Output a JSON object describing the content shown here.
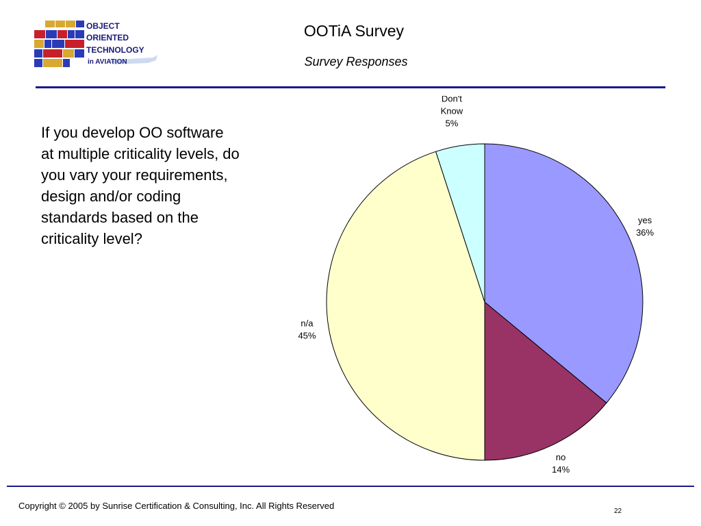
{
  "header": {
    "title": "OOTiA Survey",
    "subtitle": "Survey Responses",
    "logo": {
      "line1": "OBJECT",
      "line2": "ORIENTED",
      "line3": "TECHNOLOGY",
      "line4": "in AVIATION"
    }
  },
  "question": "If you develop OO software at multiple criticality levels, do you vary your requirements, design and/or coding standards based on the criticality level?",
  "footer": {
    "copyright": "Copyright © 2005 by Sunrise Certification & Consulting, Inc.  All Rights Reserved",
    "page_number": "22"
  },
  "colors": {
    "rule": "#1a1a8c",
    "yes": "#9999ff",
    "no": "#993366",
    "na": "#ffffcc",
    "dont_know": "#ccffff"
  },
  "chart_data": {
    "type": "pie",
    "title": "",
    "slices": [
      {
        "label": "yes",
        "value": 36,
        "pct_label": "36%",
        "color": "#9999ff"
      },
      {
        "label": "no",
        "value": 14,
        "pct_label": "14%",
        "color": "#993366"
      },
      {
        "label": "n/a",
        "value": 45,
        "pct_label": "45%",
        "color": "#ffffcc"
      },
      {
        "label": "Don't Know",
        "value": 5,
        "pct_label": "5%",
        "color": "#ccffff"
      }
    ],
    "start": "12 o'clock",
    "direction": "clockwise"
  }
}
